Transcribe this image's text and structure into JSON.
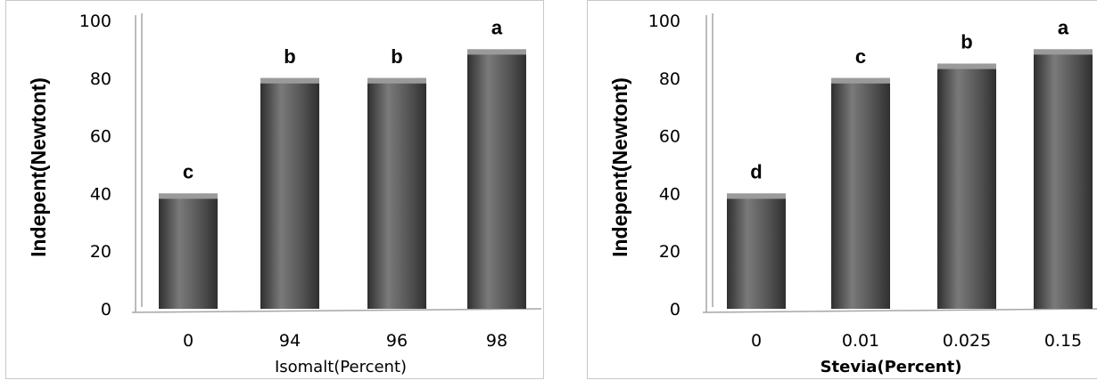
{
  "colors": {
    "bar": "#555555",
    "bar_light": "#7a7a7a",
    "bar_dark": "#2f2f2f",
    "axis": "#a6a6a6"
  },
  "chart_data": [
    {
      "type": "bar",
      "categories": [
        "0",
        "94",
        "96",
        "98"
      ],
      "values": [
        40,
        80,
        80,
        90
      ],
      "data_labels": [
        "c",
        "b",
        "b",
        "a"
      ],
      "xlabel": "Isomalt(Percent)",
      "xlabel_bold": false,
      "ylabel": "Indepent(Newtont)",
      "ylim": [
        0,
        100
      ],
      "yticks": [
        "0",
        "20",
        "40",
        "60",
        "80",
        "100"
      ],
      "grid": false,
      "legend": "none"
    },
    {
      "type": "bar",
      "categories": [
        "0",
        "0.01",
        "0.025",
        "0.15"
      ],
      "values": [
        40,
        80,
        85,
        90
      ],
      "data_labels": [
        "d",
        "c",
        "b",
        "a"
      ],
      "xlabel": "Stevia(Percent)",
      "xlabel_bold": true,
      "ylabel": "Indepent(Newtont)",
      "ylim": [
        0,
        100
      ],
      "yticks": [
        "0",
        "20",
        "40",
        "60",
        "80",
        "100"
      ],
      "grid": false,
      "legend": "none"
    }
  ]
}
